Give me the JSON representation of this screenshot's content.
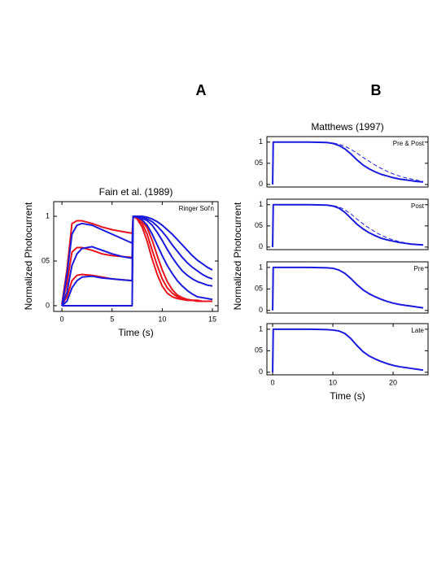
{
  "chart_data": [
    {
      "type": "line",
      "panel": "A",
      "title": "Fain et al. (1989)",
      "xlabel": "Time (s)",
      "ylabel": "Normalized Photocurrent",
      "annotation": "Ringer Sol'n",
      "xlim": [
        -0.82,
        15.57
      ],
      "ylim": [
        -0.064,
        1.164
      ],
      "xticks": [
        0,
        5,
        10,
        15
      ],
      "yticks": [
        0,
        {
          "value": 0.5,
          "label": "05"
        },
        1
      ],
      "x": [
        0,
        0.5,
        1,
        1.5,
        2,
        3,
        4,
        5,
        6,
        7,
        7.1,
        7.5,
        8,
        8.5,
        9,
        9.5,
        10,
        10.5,
        11,
        11.5,
        12,
        12.5,
        13,
        13.5,
        14,
        14.5,
        15
      ],
      "series": [
        {
          "color": "#e8141c",
          "values": [
            0.02,
            0.4,
            0.92,
            0.95,
            0.95,
            0.92,
            0.88,
            0.85,
            0.83,
            0.81,
            1,
            0.97,
            0.88,
            0.72,
            0.52,
            0.35,
            0.22,
            0.14,
            0.1,
            0.08,
            0.07,
            0.06,
            0.06,
            0.05,
            0.05,
            0.05,
            0.05
          ]
        },
        {
          "color": "#e8141c",
          "values": [
            0.02,
            0.25,
            0.6,
            0.65,
            0.65,
            0.62,
            0.58,
            0.56,
            0.55,
            0.54,
            1,
            0.98,
            0.92,
            0.8,
            0.62,
            0.45,
            0.3,
            0.2,
            0.14,
            0.1,
            0.08,
            0.07,
            0.06,
            0.06,
            0.05,
            0.05,
            0.05
          ]
        },
        {
          "color": "#e8141c",
          "values": [
            0.01,
            0.1,
            0.28,
            0.34,
            0.35,
            0.34,
            0.32,
            0.3,
            0.29,
            0.28,
            1,
            0.99,
            0.95,
            0.87,
            0.73,
            0.56,
            0.4,
            0.27,
            0.18,
            0.12,
            0.09,
            0.07,
            0.06,
            0.06,
            0.05,
            0.05,
            0.05
          ]
        },
        {
          "color": "#1a1adc",
          "values": [
            0,
            0.35,
            0.8,
            0.9,
            0.92,
            0.9,
            0.85,
            0.8,
            0.75,
            0.7,
            1,
            0.99,
            0.96,
            0.9,
            0.8,
            0.68,
            0.56,
            0.45,
            0.36,
            0.28,
            0.22,
            0.17,
            0.13,
            0.1,
            0.09,
            0.08,
            0.07
          ]
        },
        {
          "color": "#1a1adc",
          "values": [
            0,
            0.15,
            0.45,
            0.58,
            0.64,
            0.66,
            0.62,
            0.58,
            0.55,
            0.53,
            1,
            1,
            0.98,
            0.95,
            0.9,
            0.82,
            0.73,
            0.63,
            0.54,
            0.46,
            0.39,
            0.34,
            0.3,
            0.27,
            0.25,
            0.23,
            0.22
          ]
        },
        {
          "color": "#1a1adc",
          "values": [
            0,
            0.05,
            0.2,
            0.28,
            0.32,
            0.33,
            0.31,
            0.3,
            0.29,
            0.28,
            1,
            1,
            0.99,
            0.97,
            0.94,
            0.89,
            0.83,
            0.76,
            0.68,
            0.61,
            0.54,
            0.48,
            0.43,
            0.39,
            0.35,
            0.32,
            0.3
          ]
        },
        {
          "color": "#1a1adc",
          "values": [
            0,
            0,
            0,
            0,
            0,
            0,
            0,
            0,
            0,
            0,
            1,
            1,
            1,
            0.99,
            0.97,
            0.94,
            0.9,
            0.85,
            0.8,
            0.74,
            0.68,
            0.62,
            0.56,
            0.51,
            0.47,
            0.43,
            0.4
          ]
        }
      ]
    },
    {
      "type": "line",
      "panel": "B",
      "title": "Matthews (1997)",
      "ylabel": "Normalized Photocurrent",
      "annotation": "Pre & Post",
      "xlim": [
        -0.95,
        25.8
      ],
      "ylim": [
        -0.06,
        1.13
      ],
      "yticks": [
        0,
        {
          "value": 0.5,
          "label": "05"
        },
        1
      ],
      "x": [
        0,
        0.1,
        2,
        6,
        9,
        10,
        11,
        12,
        13,
        14,
        15,
        16,
        17,
        18,
        19,
        20,
        21,
        22,
        23,
        24,
        25
      ],
      "series": [
        {
          "color": "#1a1adc",
          "values": [
            0,
            1,
            1,
            1,
            0.99,
            0.97,
            0.92,
            0.84,
            0.72,
            0.58,
            0.46,
            0.37,
            0.3,
            0.24,
            0.2,
            0.16,
            0.13,
            0.11,
            0.09,
            0.07,
            0.06
          ]
        },
        {
          "color": "#1a1adc",
          "dashed": true,
          "values": [
            null,
            null,
            null,
            null,
            0.99,
            0.98,
            0.95,
            0.9,
            0.83,
            0.74,
            0.64,
            0.55,
            0.46,
            0.38,
            0.31,
            0.25,
            0.2,
            0.16,
            0.13,
            0.1,
            0.07
          ]
        }
      ]
    },
    {
      "type": "line",
      "annotation": "Post",
      "xlim": [
        -0.95,
        25.8
      ],
      "ylim": [
        -0.06,
        1.13
      ],
      "yticks": [
        0,
        {
          "value": 0.5,
          "label": "05"
        },
        1
      ],
      "x": [
        0,
        0.1,
        2,
        6,
        9,
        10,
        11,
        12,
        13,
        14,
        15,
        16,
        17,
        18,
        19,
        20,
        21,
        22,
        23,
        24,
        25
      ],
      "series": [
        {
          "color": "#1a1adc",
          "values": [
            0,
            1,
            1,
            1,
            0.99,
            0.97,
            0.92,
            0.82,
            0.68,
            0.54,
            0.43,
            0.34,
            0.27,
            0.21,
            0.17,
            0.14,
            0.11,
            0.09,
            0.07,
            0.06,
            0.05
          ]
        },
        {
          "color": "#1a1adc",
          "dashed": true,
          "values": [
            null,
            null,
            null,
            null,
            0.99,
            0.98,
            0.95,
            0.88,
            0.78,
            0.66,
            0.55,
            0.45,
            0.36,
            0.28,
            0.22,
            0.17,
            0.13,
            0.1,
            0.08,
            0.06,
            0.05
          ]
        }
      ]
    },
    {
      "type": "line",
      "annotation": "Pre",
      "xlim": [
        -0.95,
        25.8
      ],
      "ylim": [
        -0.06,
        1.13
      ],
      "yticks": [
        0,
        {
          "value": 0.5,
          "label": "05"
        },
        1
      ],
      "x": [
        0,
        0.1,
        2,
        6,
        9,
        10,
        11,
        12,
        13,
        14,
        15,
        16,
        17,
        18,
        19,
        20,
        21,
        22,
        23,
        24,
        25
      ],
      "series": [
        {
          "color": "#1a1adc",
          "values": [
            0,
            1,
            1,
            1,
            0.99,
            0.98,
            0.94,
            0.86,
            0.74,
            0.6,
            0.48,
            0.39,
            0.32,
            0.26,
            0.21,
            0.17,
            0.14,
            0.12,
            0.1,
            0.08,
            0.06
          ]
        }
      ]
    },
    {
      "type": "line",
      "xlabel": "Time (s)",
      "annotation": "Late",
      "xlim": [
        -0.95,
        25.8
      ],
      "ylim": [
        -0.06,
        1.13
      ],
      "xticks": [
        0,
        10,
        20
      ],
      "yticks": [
        0,
        {
          "value": 0.5,
          "label": "05"
        },
        1
      ],
      "x": [
        0,
        0.1,
        2,
        6,
        9,
        10,
        11,
        12,
        13,
        14,
        15,
        16,
        17,
        18,
        19,
        20,
        21,
        22,
        23,
        24,
        25
      ],
      "series": [
        {
          "color": "#1a1adc",
          "values": [
            0,
            1,
            1,
            1,
            0.99,
            0.98,
            0.96,
            0.9,
            0.78,
            0.62,
            0.48,
            0.38,
            0.31,
            0.25,
            0.2,
            0.16,
            0.13,
            0.11,
            0.09,
            0.07,
            0.05
          ]
        }
      ]
    }
  ]
}
